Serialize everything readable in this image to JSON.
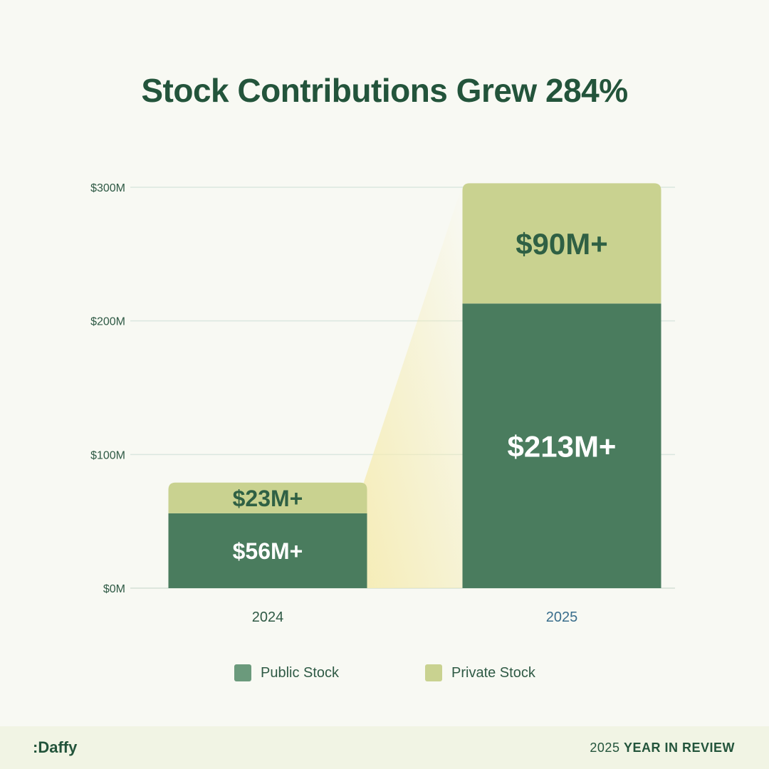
{
  "title": "Stock Contributions Grew 284%",
  "chart_data": {
    "type": "bar",
    "stacked": true,
    "categories": [
      "2024",
      "2025"
    ],
    "series": [
      {
        "name": "Public Stock",
        "values": [
          56,
          213
        ],
        "labels": [
          "$56M+",
          "$213M+"
        ],
        "color": "#4a7c5e",
        "label_color": "#ffffff"
      },
      {
        "name": "Private Stock",
        "values": [
          23,
          90
        ],
        "labels": [
          "$23M+",
          "$90M+"
        ],
        "color": "#c9d290",
        "label_color": "#2f6044"
      }
    ],
    "ylim": [
      0,
      300
    ],
    "yticks": [
      0,
      100,
      200,
      300
    ],
    "ytick_labels": [
      "$0M",
      "$100M",
      "$200M",
      "$300M"
    ],
    "grid": true,
    "legend_position": "bottom",
    "category_label_colors": [
      "#2f5a45",
      "#3a6e8c"
    ],
    "highlight_color": "#f5ecb4"
  },
  "legend": {
    "public_label": "Public Stock",
    "public_color": "#6b9a7c",
    "private_label": "Private Stock",
    "private_color": "#c9d290"
  },
  "footer": {
    "logo": ":Daffy",
    "year": "2025",
    "review": "YEAR IN REVIEW"
  }
}
